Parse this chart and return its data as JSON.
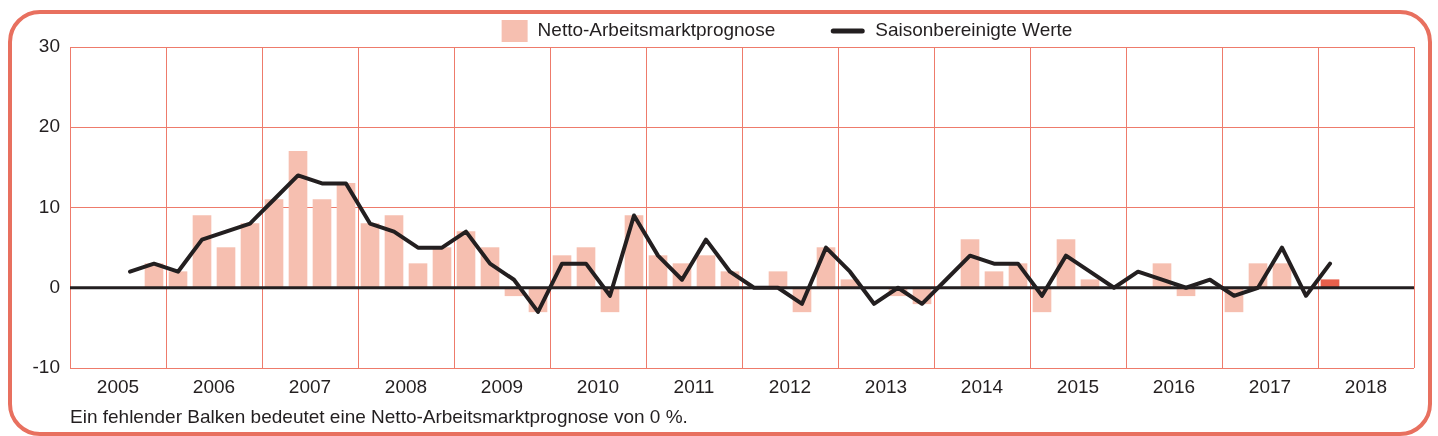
{
  "chart_data": {
    "type": "bar",
    "annotations": [
      "Ein fehlender Balken bedeutet eine Netto-Arbeitsmarktprognose von 0 %."
    ],
    "x": [
      2005.625,
      2005.875,
      2006.125,
      2006.375,
      2006.625,
      2006.875,
      2007.125,
      2007.375,
      2007.625,
      2007.875,
      2008.125,
      2008.375,
      2008.625,
      2008.875,
      2009.125,
      2009.375,
      2009.625,
      2009.875,
      2010.125,
      2010.375,
      2010.625,
      2010.875,
      2011.125,
      2011.375,
      2011.625,
      2011.875,
      2012.125,
      2012.375,
      2012.625,
      2012.875,
      2013.125,
      2013.375,
      2013.625,
      2013.875,
      2014.125,
      2014.375,
      2014.625,
      2014.875,
      2015.125,
      2015.375,
      2015.625,
      2015.875,
      2016.125,
      2016.375,
      2016.625,
      2016.875,
      2017.125,
      2017.375,
      2017.625,
      2017.875,
      2018.125
    ],
    "series": [
      {
        "name": "Netto-Arbeitsmarktprognose",
        "color": "#f6bfb0",
        "colors": [
          "#f6bfb0",
          "#f6bfb0",
          "#f6bfb0",
          "#f6bfb0",
          "#f6bfb0",
          "#f6bfb0",
          "#f6bfb0",
          "#f6bfb0",
          "#f6bfb0",
          "#f6bfb0",
          "#f6bfb0",
          "#f6bfb0",
          "#f6bfb0",
          "#f6bfb0",
          "#f6bfb0",
          "#f6bfb0",
          "#f6bfb0",
          "#f6bfb0",
          "#f6bfb0",
          "#f6bfb0",
          "#f6bfb0",
          "#f6bfb0",
          "#f6bfb0",
          "#f6bfb0",
          "#f6bfb0",
          "#f6bfb0",
          "#f6bfb0",
          "#f6bfb0",
          "#f6bfb0",
          "#f6bfb0",
          "#f6bfb0",
          "#f6bfb0",
          "#f6bfb0",
          "#f6bfb0",
          "#f6bfb0",
          "#f6bfb0",
          "#f6bfb0",
          "#f6bfb0",
          "#f6bfb0",
          "#f6bfb0",
          "#f6bfb0",
          "#f6bfb0",
          "#f6bfb0",
          "#f6bfb0",
          "#f6bfb0",
          "#f6bfb0",
          "#f6bfb0",
          "#f6bfb0",
          "#f6bfb0",
          "#f6bfb0",
          "#e8604c"
        ],
        "values": [
          0,
          3,
          2,
          9,
          5,
          8,
          11,
          17,
          11,
          13,
          8,
          9,
          3,
          5,
          7,
          5,
          -1,
          -3,
          4,
          5,
          -3,
          9,
          4,
          3,
          4,
          2,
          0,
          2,
          -3,
          5,
          1,
          0,
          -1,
          -2,
          0,
          6,
          2,
          3,
          -3,
          6,
          1,
          0,
          0,
          3,
          -1,
          0,
          -3,
          3,
          3,
          0,
          1
        ]
      },
      {
        "name": "Saisonbereinigte Werte",
        "type": "line",
        "color": "#231f20",
        "values": [
          2,
          3,
          2,
          6,
          7,
          8,
          11,
          14,
          13,
          13,
          8,
          7,
          5,
          5,
          7,
          3,
          1,
          -3,
          3,
          3,
          -1,
          9,
          4,
          1,
          6,
          2,
          0,
          0,
          -2,
          5,
          2,
          -2,
          0,
          -2,
          1,
          4,
          3,
          3,
          -1,
          4,
          2,
          0,
          2,
          1,
          0,
          1,
          -1,
          0,
          5,
          -1,
          3
        ]
      }
    ],
    "xlim": [
      2005,
      2019
    ],
    "xticks": [
      {
        "value": 2005,
        "label": null
      },
      {
        "value": 2005.5,
        "label": "2005"
      },
      {
        "value": 2006,
        "label": null
      },
      {
        "value": 2006.5,
        "label": "2006"
      },
      {
        "value": 2007,
        "label": null
      },
      {
        "value": 2007.5,
        "label": "2007"
      },
      {
        "value": 2008,
        "label": null
      },
      {
        "value": 2008.5,
        "label": "2008"
      },
      {
        "value": 2009,
        "label": null
      },
      {
        "value": 2009.5,
        "label": "2009"
      },
      {
        "value": 2010,
        "label": null
      },
      {
        "value": 2010.5,
        "label": "2010"
      },
      {
        "value": 2011,
        "label": null
      },
      {
        "value": 2011.5,
        "label": "2011"
      },
      {
        "value": 2012,
        "label": null
      },
      {
        "value": 2012.5,
        "label": "2012"
      },
      {
        "value": 2013,
        "label": null
      },
      {
        "value": 2013.5,
        "label": "2013"
      },
      {
        "value": 2014,
        "label": null
      },
      {
        "value": 2014.5,
        "label": "2014"
      },
      {
        "value": 2015,
        "label": null
      },
      {
        "value": 2015.5,
        "label": "2015"
      },
      {
        "value": 2016,
        "label": null
      },
      {
        "value": 2016.5,
        "label": "2016"
      },
      {
        "value": 2017,
        "label": null
      },
      {
        "value": 2017.5,
        "label": "2017"
      },
      {
        "value": 2018,
        "label": null
      },
      {
        "value": 2018.5,
        "label": "2018"
      },
      {
        "value": 2019,
        "label": null
      }
    ],
    "ylim": [
      -10,
      30
    ],
    "yticks": [
      -10,
      0,
      10,
      20,
      30
    ],
    "ref_lines": [
      {
        "axis": "y",
        "value": 0,
        "color": "#231f20"
      }
    ],
    "grid": true,
    "legend": "top"
  }
}
